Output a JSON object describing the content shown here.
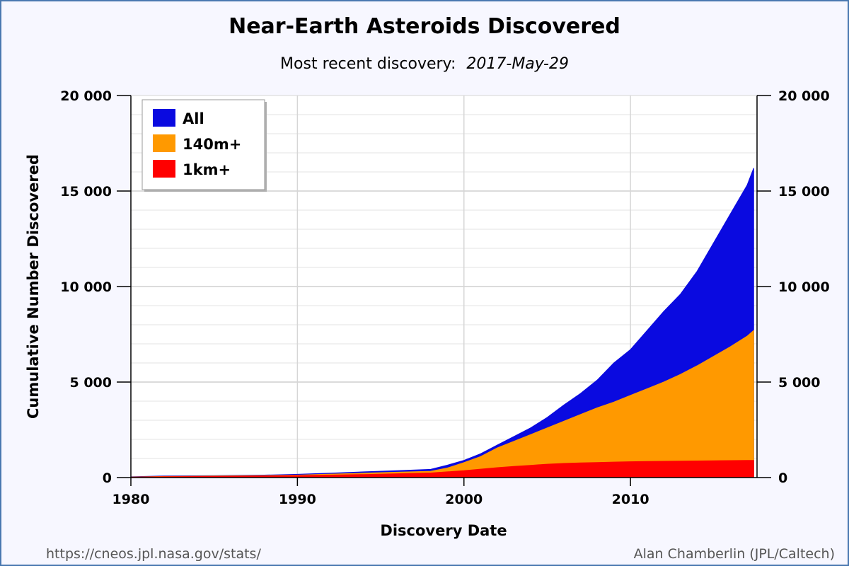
{
  "chart_data": {
    "type": "area",
    "title": "Near-Earth Asteroids Discovered",
    "subtitle_prefix": "Most recent discovery:",
    "subtitle_date": "2017-May-29",
    "xlabel": "Discovery Date",
    "ylabel": "Cumulative Number Discovered",
    "xlim": [
      1980,
      2017.6
    ],
    "ylim": [
      0,
      20000
    ],
    "xticks": [
      1980,
      1990,
      2000,
      2010
    ],
    "xtick_labels": [
      "1980",
      "1990",
      "2000",
      "2010"
    ],
    "yticks": [
      0,
      5000,
      10000,
      15000,
      20000
    ],
    "ytick_labels": [
      "0",
      "5 000",
      "10 000",
      "15 000",
      "20 000"
    ],
    "grid": true,
    "stacked": false,
    "legend_position": "top-left",
    "x": [
      1980,
      1982,
      1985,
      1988,
      1990,
      1992,
      1994,
      1996,
      1998,
      1999,
      2000,
      2001,
      2002,
      2003,
      2004,
      2005,
      2006,
      2007,
      2008,
      2009,
      2010,
      2011,
      2012,
      2013,
      2014,
      2015,
      2016,
      2017,
      2017.4
    ],
    "series": [
      {
        "name": "All",
        "color": "#0a0ae0",
        "values": [
          40,
          80,
          100,
          130,
          170,
          230,
          300,
          360,
          430,
          650,
          900,
          1250,
          1700,
          2150,
          2600,
          3150,
          3800,
          4400,
          5100,
          6000,
          6700,
          7700,
          8700,
          9600,
          10800,
          12300,
          13800,
          15300,
          16200
        ]
      },
      {
        "name": "140m+",
        "color": "#ff9900",
        "values": [
          30,
          60,
          80,
          100,
          130,
          180,
          230,
          280,
          330,
          500,
          780,
          1100,
          1550,
          1900,
          2250,
          2600,
          2950,
          3300,
          3650,
          3950,
          4300,
          4650,
          5000,
          5400,
          5850,
          6350,
          6850,
          7400,
          7700
        ]
      },
      {
        "name": "1km+",
        "color": "#ff0000",
        "values": [
          20,
          45,
          60,
          80,
          100,
          130,
          160,
          200,
          240,
          300,
          360,
          440,
          520,
          580,
          640,
          700,
          740,
          770,
          790,
          810,
          830,
          840,
          850,
          860,
          870,
          880,
          890,
          895,
          900
        ]
      }
    ]
  },
  "footer": {
    "left": "https://cneos.jpl.nasa.gov/stats/",
    "right": "Alan Chamberlin (JPL/Caltech)"
  }
}
